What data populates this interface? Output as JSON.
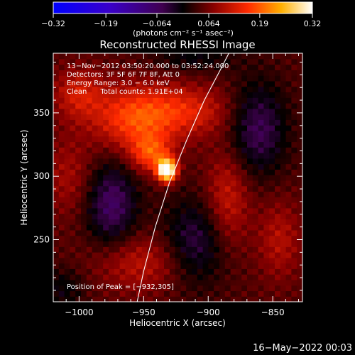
{
  "chart_data": {
    "type": "heatmap",
    "title": "Reconstructed RHESSI Image",
    "xlabel": "Heliocentric X (arcsec)",
    "ylabel": "Heliocentric Y (arcsec)",
    "xlim": [
      -1020,
      -827
    ],
    "ylim": [
      201,
      397
    ],
    "x_ticks": [
      -1000,
      -950,
      -900,
      -850
    ],
    "x_tick_labels": [
      "−1000",
      "−950",
      "−900",
      "−850"
    ],
    "y_ticks": [
      250,
      300,
      350
    ],
    "y_tick_labels": [
      "250",
      "300",
      "350"
    ],
    "colorbar": {
      "min": -0.32,
      "max": 0.32,
      "ticks": [
        -0.32,
        -0.19,
        -0.064,
        0.064,
        0.19,
        0.32
      ],
      "tick_labels": [
        "−0.32",
        "−0.19",
        "−0.064",
        "0.064",
        "0.19",
        "0.32"
      ],
      "units_text": "(photons cm⁻² s⁻¹ asec⁻²)"
    },
    "info_lines": [
      "13−Nov−2012 03:50:20.000 to 03:52:24.000",
      "Detectors: 3F 5F 6F 7F 8F, Att 0",
      "Energy Range: 3.0 − 6.0 keV",
      "Clean      Total counts: 1.91E+04"
    ],
    "peak_label": "Position of Peak = [−932,305]",
    "peak": {
      "x": -932,
      "y": 305,
      "value": 0.32
    },
    "limb_points": [
      [
        -955,
        201
      ],
      [
        -950,
        225
      ],
      [
        -941,
        260
      ],
      [
        -930,
        295
      ],
      [
        -916,
        330
      ],
      [
        -903,
        360
      ],
      [
        -890,
        385
      ],
      [
        -884,
        397
      ]
    ],
    "features": [
      {
        "x": -932,
        "y": 305,
        "sx": 5,
        "sy": 6,
        "amp": 0.34
      },
      {
        "x": -944,
        "y": 318,
        "sx": 11,
        "sy": 10,
        "amp": 0.12
      },
      {
        "x": -958,
        "y": 345,
        "sx": 22,
        "sy": 18,
        "amp": 0.12
      },
      {
        "x": -918,
        "y": 352,
        "sx": 26,
        "sy": 14,
        "amp": 0.09
      },
      {
        "x": -885,
        "y": 282,
        "sx": 12,
        "sy": 28,
        "amp": 0.08
      },
      {
        "x": -845,
        "y": 250,
        "sx": 12,
        "sy": 22,
        "amp": 0.06
      },
      {
        "x": -1008,
        "y": 300,
        "sx": 14,
        "sy": 22,
        "amp": 0.05
      },
      {
        "x": -1000,
        "y": 365,
        "sx": 14,
        "sy": 14,
        "amp": 0.08
      },
      {
        "x": -952,
        "y": 232,
        "sx": 26,
        "sy": 16,
        "amp": 0.07
      },
      {
        "x": -975,
        "y": 278,
        "sx": 14,
        "sy": 24,
        "amp": -0.11
      },
      {
        "x": -910,
        "y": 248,
        "sx": 18,
        "sy": 24,
        "amp": -0.09
      },
      {
        "x": -862,
        "y": 338,
        "sx": 16,
        "sy": 26,
        "amp": -0.1
      },
      {
        "x": -912,
        "y": 395,
        "sx": 22,
        "sy": 9,
        "amp": -0.05
      },
      {
        "x": -1012,
        "y": 212,
        "sx": 12,
        "sy": 12,
        "amp": -0.05
      }
    ]
  },
  "footer_date": "16−May−2022 00:03"
}
